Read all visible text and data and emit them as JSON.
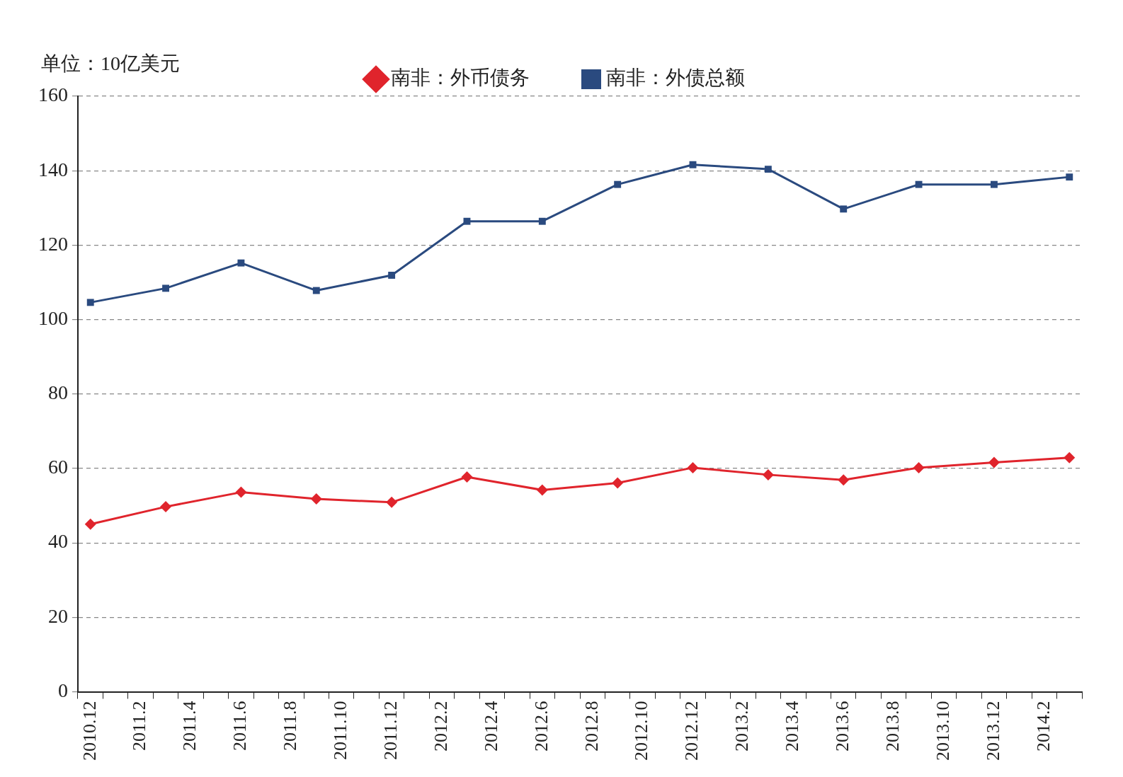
{
  "chart_data": {
    "type": "line",
    "ylabel": "单位：10亿美元",
    "categories": [
      "2010.12",
      null,
      "2011.2",
      null,
      "2011.4",
      null,
      "2011.6",
      null,
      "2011.8",
      null,
      "2011.10",
      null,
      "2011.12",
      null,
      "2012.2",
      null,
      "2012.4",
      null,
      "2012.6",
      null,
      "2012.8",
      null,
      "2012.10",
      null,
      "2012.12",
      null,
      "2013.2",
      null,
      "2013.4",
      null,
      "2013.6",
      null,
      "2013.8",
      null,
      "2013.10",
      null,
      "2013.12",
      null,
      "2014.2",
      null
    ],
    "series": [
      {
        "name": "南非：外币债务",
        "color": "#e0242c",
        "marker": "diamond",
        "values": [
          45.0,
          null,
          null,
          49.7,
          null,
          null,
          53.6,
          null,
          null,
          51.8,
          null,
          null,
          50.9,
          null,
          null,
          57.7,
          null,
          null,
          54.2,
          null,
          null,
          56.1,
          null,
          null,
          60.2,
          null,
          null,
          58.3,
          null,
          null,
          56.9,
          null,
          null,
          60.2,
          null,
          null,
          61.6,
          null,
          null,
          62.9
        ]
      },
      {
        "name": "南非：外债总额",
        "color": "#2a4a7f",
        "marker": "square",
        "values": [
          104.6,
          null,
          null,
          108.4,
          null,
          null,
          115.2,
          null,
          null,
          107.8,
          null,
          null,
          111.9,
          null,
          null,
          126.4,
          null,
          null,
          126.4,
          null,
          null,
          136.3,
          null,
          null,
          141.6,
          null,
          null,
          140.4,
          null,
          null,
          129.7,
          null,
          null,
          136.3,
          null,
          null,
          136.3,
          null,
          null,
          138.3
        ]
      }
    ],
    "ylim": [
      0,
      160
    ],
    "yticks": [
      0,
      20,
      40,
      60,
      80,
      100,
      120,
      140,
      160
    ],
    "grid": "y",
    "legend": "top",
    "line_style": "solid"
  }
}
